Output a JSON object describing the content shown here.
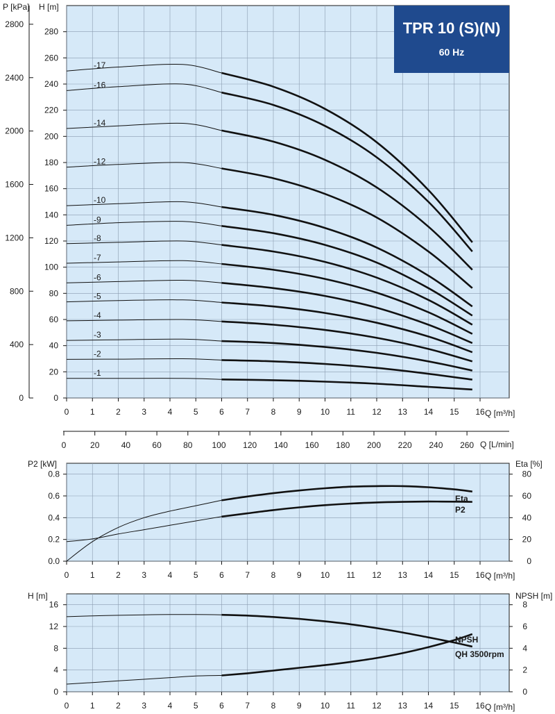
{
  "chart_data": [
    {
      "type": "line",
      "title": "TPR 10 (S)(N)",
      "subtitle": "60 Hz",
      "left_axis_label": "P [kPa]",
      "y_axis_label": "H [m]",
      "x_axis_label": "Q [m³/h]",
      "x2_axis_label": "Q [L/min]",
      "xlim": [
        0,
        16
      ],
      "ylim": [
        0,
        300
      ],
      "y2lim": [
        0,
        2940
      ],
      "x_ticks": [
        0,
        1,
        2,
        3,
        4,
        5,
        6,
        7,
        8,
        9,
        10,
        11,
        12,
        13,
        14,
        15,
        16
      ],
      "y_ticks": [
        0,
        20,
        40,
        60,
        80,
        100,
        120,
        140,
        160,
        180,
        200,
        220,
        240,
        260,
        280
      ],
      "y2_ticks": [
        0,
        400,
        800,
        1200,
        1600,
        2000,
        2400,
        2800
      ],
      "x2_ticks": [
        0,
        20,
        40,
        60,
        80,
        100,
        120,
        140,
        160,
        180,
        200,
        220,
        240,
        260
      ],
      "grid": true,
      "series": [
        {
          "name": "-1",
          "x": [
            0,
            2,
            4.5,
            6,
            8,
            10,
            12,
            14,
            15.7
          ],
          "y": [
            15,
            15,
            15,
            14.2,
            13.6,
            12.5,
            10.9,
            8.5,
            6.5
          ]
        },
        {
          "name": "-2",
          "x": [
            0,
            2,
            4.5,
            6,
            8,
            10,
            12,
            14,
            15.7
          ],
          "y": [
            29.5,
            29.7,
            30,
            29,
            28,
            26,
            23,
            18.5,
            14
          ]
        },
        {
          "name": "-3",
          "x": [
            0,
            2,
            4.5,
            6,
            8,
            10,
            12,
            14,
            15.7
          ],
          "y": [
            44,
            44.5,
            45,
            43.5,
            42,
            39,
            34.5,
            28,
            21
          ]
        },
        {
          "name": "-4",
          "x": [
            0,
            2,
            4.5,
            6,
            8,
            10,
            12,
            14,
            15.7
          ],
          "y": [
            59,
            59.5,
            60,
            58.5,
            56,
            52,
            46,
            37.5,
            28
          ]
        },
        {
          "name": "-5",
          "x": [
            0,
            2,
            4.5,
            6,
            8,
            10,
            12,
            14,
            15.7
          ],
          "y": [
            73.5,
            74.5,
            75,
            73,
            70,
            65,
            57.5,
            47,
            35
          ]
        },
        {
          "name": "-6",
          "x": [
            0,
            2,
            4.5,
            6,
            8,
            10,
            12,
            14,
            15.7
          ],
          "y": [
            88,
            89,
            90,
            88,
            84,
            78,
            69,
            56,
            42
          ]
        },
        {
          "name": "-7",
          "x": [
            0,
            2,
            4.5,
            6,
            8,
            10,
            12,
            14,
            15.7
          ],
          "y": [
            103,
            104,
            105,
            102.5,
            98,
            91,
            80.5,
            65.5,
            49
          ]
        },
        {
          "name": "-8",
          "x": [
            0,
            2,
            4.5,
            6,
            8,
            10,
            12,
            14,
            15.7
          ],
          "y": [
            118,
            119,
            120,
            117,
            112,
            104,
            92,
            75,
            56
          ]
        },
        {
          "name": "-9",
          "x": [
            0,
            2,
            4.5,
            6,
            8,
            10,
            12,
            14,
            15.7
          ],
          "y": [
            132,
            134,
            135,
            131.5,
            126,
            117,
            103.5,
            84,
            63
          ]
        },
        {
          "name": "-10",
          "x": [
            0,
            2,
            4.5,
            6,
            8,
            10,
            12,
            14,
            15.7
          ],
          "y": [
            147,
            148.5,
            150,
            146,
            140,
            130,
            115,
            93.5,
            70
          ]
        },
        {
          "name": "-12",
          "x": [
            0,
            2,
            4.5,
            6,
            8,
            10,
            12,
            14,
            15.7
          ],
          "y": [
            176.5,
            178.5,
            180,
            175.5,
            168,
            156,
            138,
            112,
            84
          ]
        },
        {
          "name": "-14",
          "x": [
            0,
            2,
            4.5,
            6,
            8,
            10,
            12,
            14,
            15.7
          ],
          "y": [
            206,
            208,
            210,
            204.5,
            196,
            182,
            161,
            131,
            98
          ]
        },
        {
          "name": "-16",
          "x": [
            0,
            2,
            4.5,
            6,
            8,
            10,
            12,
            14,
            15.7
          ],
          "y": [
            235,
            238,
            240,
            233.5,
            224,
            208,
            184,
            150,
            112
          ]
        },
        {
          "name": "-17",
          "x": [
            0,
            2,
            4.5,
            6,
            8,
            10,
            12,
            14,
            15.7
          ],
          "y": [
            250,
            253,
            255,
            248.5,
            238,
            221,
            195.5,
            159,
            119
          ]
        }
      ]
    },
    {
      "type": "line",
      "left_axis_label": "P2 [kW]",
      "right_axis_label": "Eta [%]",
      "x_axis_label": "Q [m³/h]",
      "xlim": [
        0,
        16
      ],
      "ylim": [
        0,
        0.9
      ],
      "y2lim": [
        0,
        90
      ],
      "x_ticks": [
        0,
        1,
        2,
        3,
        4,
        5,
        6,
        7,
        8,
        9,
        10,
        11,
        12,
        13,
        14,
        15,
        16
      ],
      "y_ticks": [
        "0.0",
        "0.2",
        "0.4",
        "0.6",
        "0.8"
      ],
      "y2_ticks": [
        0,
        20,
        40,
        60,
        80
      ],
      "grid": true,
      "series": [
        {
          "name": "Eta",
          "axis": "right",
          "x": [
            0,
            1,
            2,
            3,
            4,
            5,
            6,
            7,
            8,
            9,
            10,
            11,
            12,
            13,
            14,
            15,
            15.7
          ],
          "y": [
            0,
            18,
            31,
            40,
            46,
            51,
            56,
            59.5,
            62.5,
            65,
            67,
            68.5,
            69,
            69,
            68,
            66,
            64
          ]
        },
        {
          "name": "P2",
          "axis": "left",
          "x": [
            0,
            1,
            2,
            3,
            4,
            5,
            6,
            7,
            8,
            9,
            10,
            11,
            12,
            13,
            14,
            15,
            15.7
          ],
          "y": [
            0.18,
            0.205,
            0.25,
            0.29,
            0.33,
            0.37,
            0.41,
            0.44,
            0.47,
            0.495,
            0.515,
            0.53,
            0.54,
            0.545,
            0.548,
            0.547,
            0.545
          ]
        }
      ]
    },
    {
      "type": "line",
      "left_axis_label": "H [m]",
      "right_axis_label": "NPSH [m]",
      "x_axis_label": "Q [m³/h]",
      "xlim": [
        0,
        16
      ],
      "ylim": [
        0,
        18
      ],
      "y2lim": [
        0,
        9
      ],
      "x_ticks": [
        0,
        1,
        2,
        3,
        4,
        5,
        6,
        7,
        8,
        9,
        10,
        11,
        12,
        13,
        14,
        15,
        16
      ],
      "y_ticks": [
        0,
        4,
        8,
        12,
        16
      ],
      "y2_ticks": [
        0,
        2,
        4,
        6,
        8
      ],
      "grid": true,
      "series": [
        {
          "name": "QH 3500rpm",
          "axis": "left",
          "x": [
            0,
            1,
            2,
            3,
            4,
            5,
            6,
            7,
            8,
            9,
            10,
            11,
            12,
            13,
            14,
            15,
            15.7
          ],
          "y": [
            13.8,
            13.95,
            14.05,
            14.15,
            14.2,
            14.2,
            14.15,
            14.0,
            13.75,
            13.4,
            12.95,
            12.4,
            11.7,
            10.9,
            10.0,
            9.05,
            8.3
          ]
        },
        {
          "name": "NPSH",
          "axis": "right",
          "x": [
            0,
            1,
            2,
            3,
            4,
            5,
            6,
            7,
            8,
            9,
            10,
            11,
            12,
            13,
            14,
            15,
            15.7
          ],
          "y": [
            0.7,
            0.85,
            1.0,
            1.15,
            1.3,
            1.45,
            1.5,
            1.7,
            1.95,
            2.2,
            2.45,
            2.75,
            3.1,
            3.55,
            4.1,
            4.75,
            5.3
          ]
        }
      ]
    }
  ]
}
